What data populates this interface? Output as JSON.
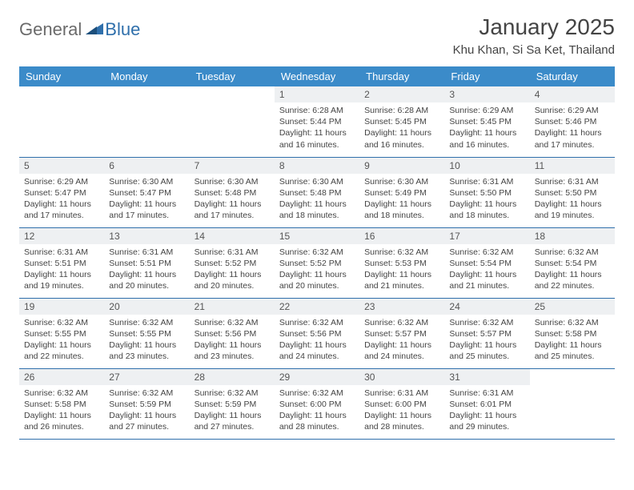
{
  "logo": {
    "text1": "General",
    "text2": "Blue"
  },
  "title": "January 2025",
  "location": "Khu Khan, Si Sa Ket, Thailand",
  "colors": {
    "header_bg": "#3b8bc9",
    "header_text": "#ffffff",
    "border": "#2f6fab",
    "daynum_bg": "#eef0f2",
    "text": "#444444",
    "logo_gray": "#6a6a6a",
    "logo_blue": "#2f6fab"
  },
  "weekdays": [
    "Sunday",
    "Monday",
    "Tuesday",
    "Wednesday",
    "Thursday",
    "Friday",
    "Saturday"
  ],
  "weeks": [
    [
      {
        "empty": true
      },
      {
        "empty": true
      },
      {
        "empty": true
      },
      {
        "day": "1",
        "sunrise": "Sunrise: 6:28 AM",
        "sunset": "Sunset: 5:44 PM",
        "daylight1": "Daylight: 11 hours",
        "daylight2": "and 16 minutes."
      },
      {
        "day": "2",
        "sunrise": "Sunrise: 6:28 AM",
        "sunset": "Sunset: 5:45 PM",
        "daylight1": "Daylight: 11 hours",
        "daylight2": "and 16 minutes."
      },
      {
        "day": "3",
        "sunrise": "Sunrise: 6:29 AM",
        "sunset": "Sunset: 5:45 PM",
        "daylight1": "Daylight: 11 hours",
        "daylight2": "and 16 minutes."
      },
      {
        "day": "4",
        "sunrise": "Sunrise: 6:29 AM",
        "sunset": "Sunset: 5:46 PM",
        "daylight1": "Daylight: 11 hours",
        "daylight2": "and 17 minutes."
      }
    ],
    [
      {
        "day": "5",
        "sunrise": "Sunrise: 6:29 AM",
        "sunset": "Sunset: 5:47 PM",
        "daylight1": "Daylight: 11 hours",
        "daylight2": "and 17 minutes."
      },
      {
        "day": "6",
        "sunrise": "Sunrise: 6:30 AM",
        "sunset": "Sunset: 5:47 PM",
        "daylight1": "Daylight: 11 hours",
        "daylight2": "and 17 minutes."
      },
      {
        "day": "7",
        "sunrise": "Sunrise: 6:30 AM",
        "sunset": "Sunset: 5:48 PM",
        "daylight1": "Daylight: 11 hours",
        "daylight2": "and 17 minutes."
      },
      {
        "day": "8",
        "sunrise": "Sunrise: 6:30 AM",
        "sunset": "Sunset: 5:48 PM",
        "daylight1": "Daylight: 11 hours",
        "daylight2": "and 18 minutes."
      },
      {
        "day": "9",
        "sunrise": "Sunrise: 6:30 AM",
        "sunset": "Sunset: 5:49 PM",
        "daylight1": "Daylight: 11 hours",
        "daylight2": "and 18 minutes."
      },
      {
        "day": "10",
        "sunrise": "Sunrise: 6:31 AM",
        "sunset": "Sunset: 5:50 PM",
        "daylight1": "Daylight: 11 hours",
        "daylight2": "and 18 minutes."
      },
      {
        "day": "11",
        "sunrise": "Sunrise: 6:31 AM",
        "sunset": "Sunset: 5:50 PM",
        "daylight1": "Daylight: 11 hours",
        "daylight2": "and 19 minutes."
      }
    ],
    [
      {
        "day": "12",
        "sunrise": "Sunrise: 6:31 AM",
        "sunset": "Sunset: 5:51 PM",
        "daylight1": "Daylight: 11 hours",
        "daylight2": "and 19 minutes."
      },
      {
        "day": "13",
        "sunrise": "Sunrise: 6:31 AM",
        "sunset": "Sunset: 5:51 PM",
        "daylight1": "Daylight: 11 hours",
        "daylight2": "and 20 minutes."
      },
      {
        "day": "14",
        "sunrise": "Sunrise: 6:31 AM",
        "sunset": "Sunset: 5:52 PM",
        "daylight1": "Daylight: 11 hours",
        "daylight2": "and 20 minutes."
      },
      {
        "day": "15",
        "sunrise": "Sunrise: 6:32 AM",
        "sunset": "Sunset: 5:52 PM",
        "daylight1": "Daylight: 11 hours",
        "daylight2": "and 20 minutes."
      },
      {
        "day": "16",
        "sunrise": "Sunrise: 6:32 AM",
        "sunset": "Sunset: 5:53 PM",
        "daylight1": "Daylight: 11 hours",
        "daylight2": "and 21 minutes."
      },
      {
        "day": "17",
        "sunrise": "Sunrise: 6:32 AM",
        "sunset": "Sunset: 5:54 PM",
        "daylight1": "Daylight: 11 hours",
        "daylight2": "and 21 minutes."
      },
      {
        "day": "18",
        "sunrise": "Sunrise: 6:32 AM",
        "sunset": "Sunset: 5:54 PM",
        "daylight1": "Daylight: 11 hours",
        "daylight2": "and 22 minutes."
      }
    ],
    [
      {
        "day": "19",
        "sunrise": "Sunrise: 6:32 AM",
        "sunset": "Sunset: 5:55 PM",
        "daylight1": "Daylight: 11 hours",
        "daylight2": "and 22 minutes."
      },
      {
        "day": "20",
        "sunrise": "Sunrise: 6:32 AM",
        "sunset": "Sunset: 5:55 PM",
        "daylight1": "Daylight: 11 hours",
        "daylight2": "and 23 minutes."
      },
      {
        "day": "21",
        "sunrise": "Sunrise: 6:32 AM",
        "sunset": "Sunset: 5:56 PM",
        "daylight1": "Daylight: 11 hours",
        "daylight2": "and 23 minutes."
      },
      {
        "day": "22",
        "sunrise": "Sunrise: 6:32 AM",
        "sunset": "Sunset: 5:56 PM",
        "daylight1": "Daylight: 11 hours",
        "daylight2": "and 24 minutes."
      },
      {
        "day": "23",
        "sunrise": "Sunrise: 6:32 AM",
        "sunset": "Sunset: 5:57 PM",
        "daylight1": "Daylight: 11 hours",
        "daylight2": "and 24 minutes."
      },
      {
        "day": "24",
        "sunrise": "Sunrise: 6:32 AM",
        "sunset": "Sunset: 5:57 PM",
        "daylight1": "Daylight: 11 hours",
        "daylight2": "and 25 minutes."
      },
      {
        "day": "25",
        "sunrise": "Sunrise: 6:32 AM",
        "sunset": "Sunset: 5:58 PM",
        "daylight1": "Daylight: 11 hours",
        "daylight2": "and 25 minutes."
      }
    ],
    [
      {
        "day": "26",
        "sunrise": "Sunrise: 6:32 AM",
        "sunset": "Sunset: 5:58 PM",
        "daylight1": "Daylight: 11 hours",
        "daylight2": "and 26 minutes."
      },
      {
        "day": "27",
        "sunrise": "Sunrise: 6:32 AM",
        "sunset": "Sunset: 5:59 PM",
        "daylight1": "Daylight: 11 hours",
        "daylight2": "and 27 minutes."
      },
      {
        "day": "28",
        "sunrise": "Sunrise: 6:32 AM",
        "sunset": "Sunset: 5:59 PM",
        "daylight1": "Daylight: 11 hours",
        "daylight2": "and 27 minutes."
      },
      {
        "day": "29",
        "sunrise": "Sunrise: 6:32 AM",
        "sunset": "Sunset: 6:00 PM",
        "daylight1": "Daylight: 11 hours",
        "daylight2": "and 28 minutes."
      },
      {
        "day": "30",
        "sunrise": "Sunrise: 6:31 AM",
        "sunset": "Sunset: 6:00 PM",
        "daylight1": "Daylight: 11 hours",
        "daylight2": "and 28 minutes."
      },
      {
        "day": "31",
        "sunrise": "Sunrise: 6:31 AM",
        "sunset": "Sunset: 6:01 PM",
        "daylight1": "Daylight: 11 hours",
        "daylight2": "and 29 minutes."
      },
      {
        "empty": true
      }
    ]
  ]
}
